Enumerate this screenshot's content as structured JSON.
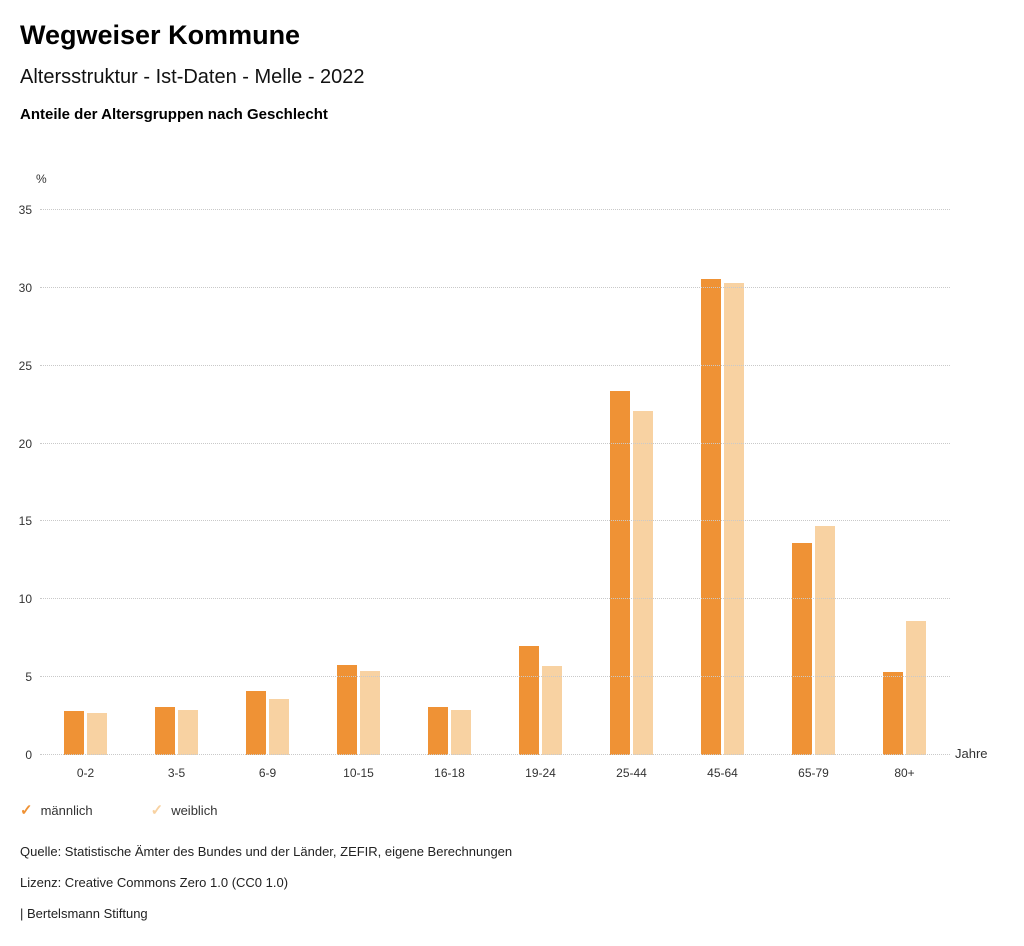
{
  "header": {
    "title": "Wegweiser Kommune",
    "subtitle": "Altersstruktur - Ist-Daten - Melle - 2022",
    "chart_heading": "Anteile der Altersgruppen nach Geschlecht"
  },
  "chart_data": {
    "type": "bar",
    "categories": [
      "0-2",
      "3-5",
      "6-9",
      "10-15",
      "16-18",
      "19-24",
      "25-44",
      "45-64",
      "65-79",
      "80+"
    ],
    "series": [
      {
        "name": "männlich",
        "color": "#EF9235",
        "values": [
          2.8,
          3.1,
          4.1,
          5.8,
          3.1,
          7.0,
          23.4,
          30.6,
          13.6,
          5.3
        ]
      },
      {
        "name": "weiblich",
        "color": "#F8D2A2",
        "values": [
          2.7,
          2.9,
          3.6,
          5.4,
          2.9,
          5.7,
          22.1,
          30.3,
          14.7,
          8.6
        ]
      }
    ],
    "title": "Anteile der Altersgruppen nach Geschlecht",
    "xlabel": "Jahre",
    "ylabel": "%",
    "ylim": [
      0,
      35
    ],
    "yticks": [
      0,
      5,
      10,
      15,
      20,
      25,
      30,
      35
    ],
    "grid": true,
    "legend_position": "bottom"
  },
  "footer": {
    "source": "Quelle: Statistische Ämter des Bundes und der Länder, ZEFIR, eigene Berechnungen",
    "license": "Lizenz: Creative Commons Zero 1.0 (CC0 1.0)",
    "attribution": "| Bertelsmann Stiftung"
  }
}
